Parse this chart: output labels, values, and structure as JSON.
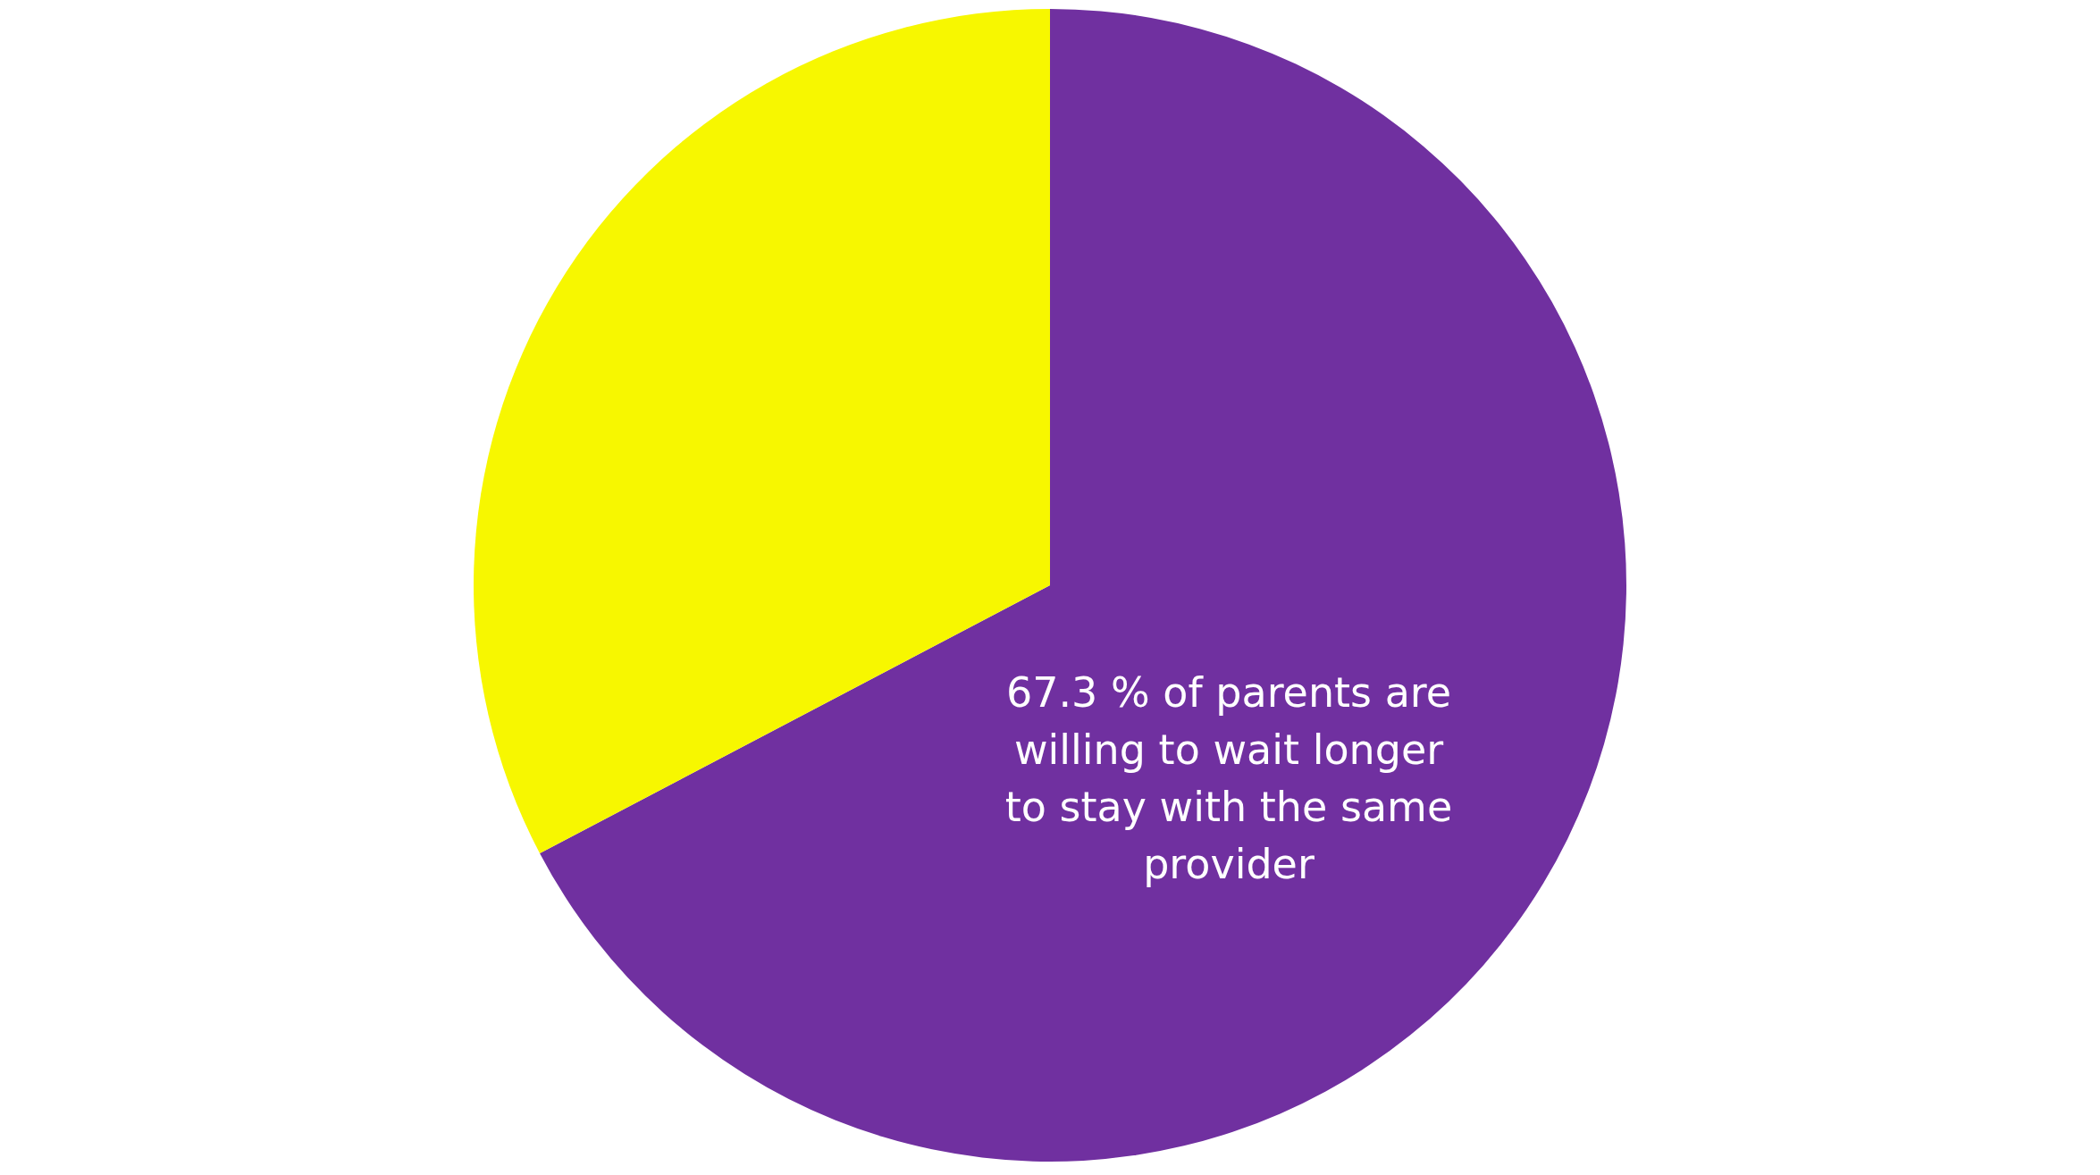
{
  "chart_data": {
    "type": "pie",
    "categories": [
      null,
      null
    ],
    "values": [
      67.3,
      32.7
    ],
    "colors": [
      "#7030a0",
      "#f7f700"
    ],
    "annotations": [
      "67.3 % of parents are willing to wait longer to stay with the same provider"
    ]
  }
}
